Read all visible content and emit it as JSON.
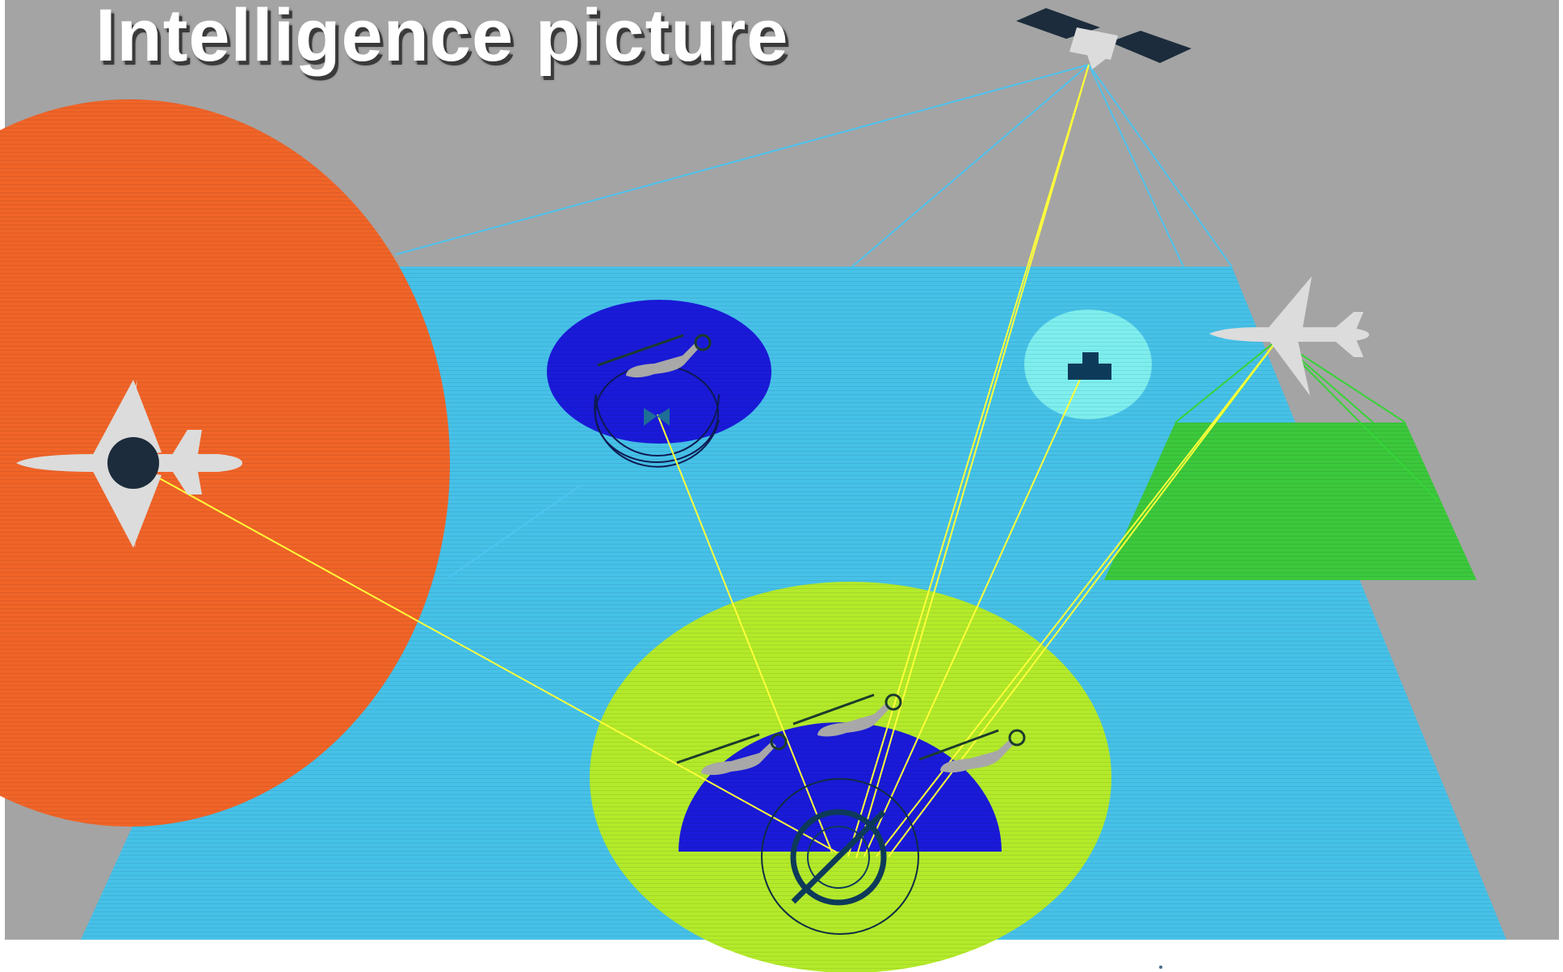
{
  "title": "Intelligence picture",
  "colors": {
    "background": "#a4a4a4",
    "ground": "#46c1e8",
    "enemy_zone": "#f06428",
    "own_zone": "#b3ea2a",
    "helicopter_zone": "#1a1ad9",
    "naval_zone": "#7eeeee",
    "sensor_footprint": "#3cc83c",
    "uplink_line": "#ffff3a",
    "satellite_link": "#4ec4f0",
    "aircraft": "#dcdcdc",
    "dark": "#1c2c3c"
  },
  "icons": [
    "satellite-icon",
    "enemy-aircraft-icon",
    "surveillance-aircraft-icon",
    "helicopter-icon",
    "naval-vessel-icon",
    "radar-icon",
    "command-post-icon"
  ]
}
